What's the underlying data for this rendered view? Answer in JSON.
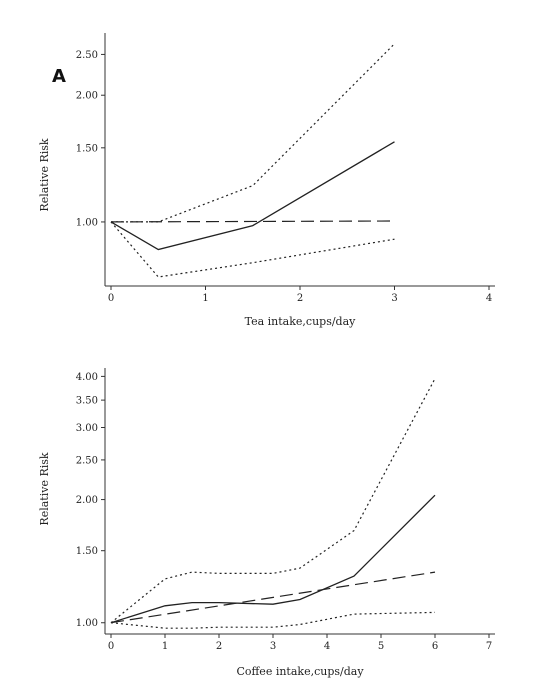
{
  "chart_data": [
    {
      "type": "line",
      "panel_label": "A",
      "xlabel": "Tea intake,cups/day",
      "ylabel": "Relative Risk",
      "y_scale": "log",
      "xlim": [
        0,
        4
      ],
      "ylim": [
        0.72,
        2.75
      ],
      "x_ticks": [
        0,
        1,
        2,
        3,
        4
      ],
      "y_ticks": [
        1.0,
        1.5,
        2.0,
        2.5
      ],
      "y_tick_labels": [
        "1.00",
        "1.50",
        "2.00",
        "2.50"
      ],
      "series": [
        {
          "style": "solid",
          "x": [
            0,
            0.5,
            1.5,
            3
          ],
          "y": [
            1.0,
            0.86,
            0.98,
            1.55
          ]
        },
        {
          "style": "dotted-upper",
          "x": [
            0,
            0.5,
            1.5,
            3
          ],
          "y": [
            1.0,
            1.0,
            1.22,
            2.65
          ]
        },
        {
          "style": "dotted-lower",
          "x": [
            0,
            0.5,
            1.5,
            3
          ],
          "y": [
            1.0,
            0.74,
            0.8,
            0.91
          ]
        },
        {
          "style": "dashed",
          "x": [
            0,
            3
          ],
          "y": [
            1.0,
            1.005
          ]
        }
      ],
      "grid": false
    },
    {
      "type": "line",
      "xlabel": "Coffee intake,cups/day",
      "ylabel": "Relative Risk",
      "y_scale": "log",
      "xlim": [
        0,
        7
      ],
      "ylim": [
        0.96,
        4.1
      ],
      "x_ticks": [
        0,
        1,
        2,
        3,
        4,
        5,
        6,
        7
      ],
      "y_ticks": [
        1.0,
        1.5,
        2.0,
        2.5,
        3.0,
        3.5,
        4.0
      ],
      "y_tick_labels": [
        "1.00",
        "1.50",
        "2.00",
        "2.50",
        "3.00",
        "3.50",
        "4.00"
      ],
      "series": [
        {
          "style": "solid",
          "x": [
            0,
            1,
            1.5,
            2,
            3,
            3.5,
            4.5,
            6
          ],
          "y": [
            1.0,
            1.1,
            1.12,
            1.12,
            1.11,
            1.14,
            1.3,
            2.05
          ]
        },
        {
          "style": "dotted-upper",
          "x": [
            0,
            1,
            1.5,
            2,
            3,
            3.5,
            4.5,
            6
          ],
          "y": [
            1.0,
            1.28,
            1.33,
            1.32,
            1.32,
            1.36,
            1.68,
            3.95
          ]
        },
        {
          "style": "dotted-lower",
          "x": [
            0,
            1,
            1.5,
            2,
            3,
            3.5,
            4.5,
            6
          ],
          "y": [
            1.0,
            0.97,
            0.97,
            0.975,
            0.975,
            0.99,
            1.05,
            1.06
          ]
        },
        {
          "style": "dashed",
          "x": [
            0,
            6
          ],
          "y": [
            1.0,
            1.33
          ]
        }
      ],
      "grid": false
    }
  ]
}
